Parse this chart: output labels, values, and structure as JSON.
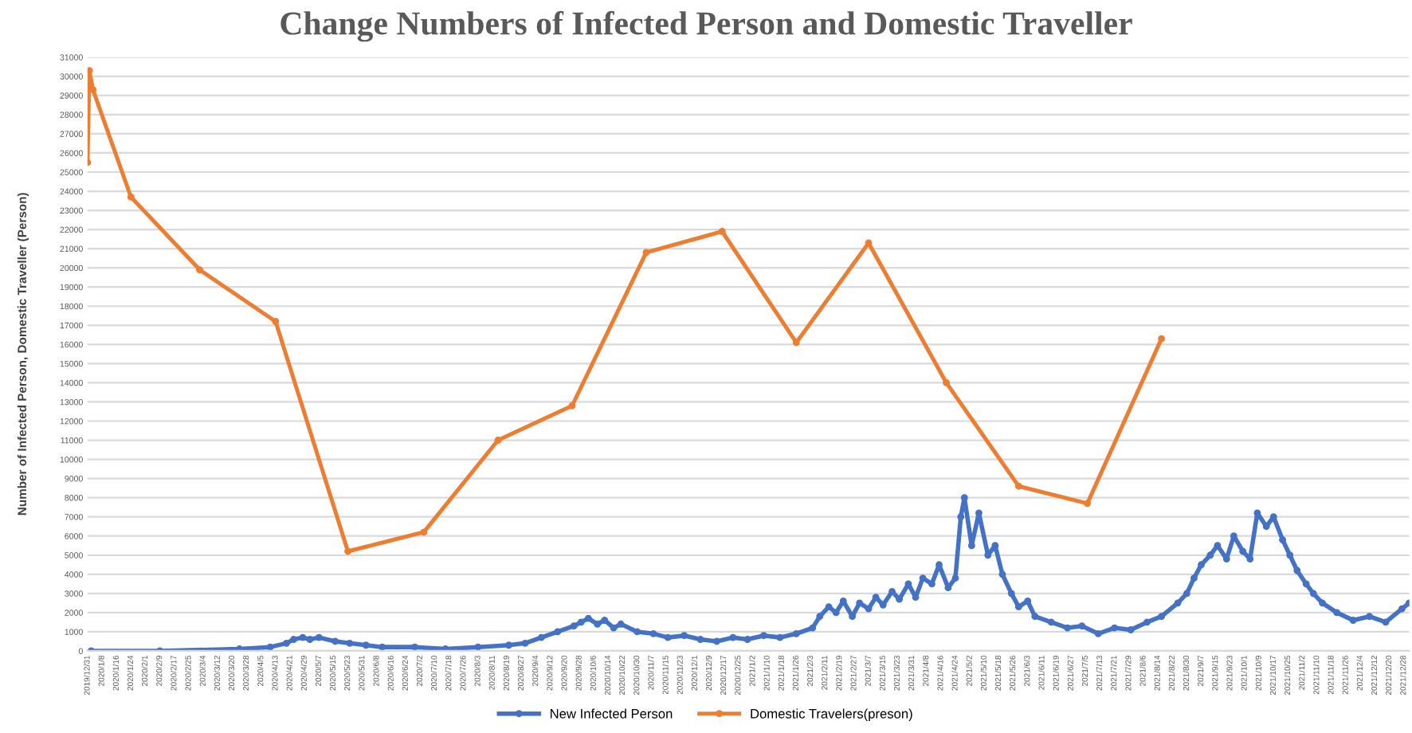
{
  "chart_data": {
    "type": "line",
    "title": "Change Numbers of Infected Person and Domestic Traveller",
    "ylabel": "Number of Infected Person, Domestic Traveller (Person)",
    "series": [
      {
        "name": "New Infected Person",
        "color": "#4472c4",
        "x": [
          "2020-01-02",
          "2020-02-09",
          "2020-03-24",
          "2020-04-10",
          "2020-04-19",
          "2020-04-23",
          "2020-04-28",
          "2020-05-02",
          "2020-05-07",
          "2020-05-16",
          "2020-05-24",
          "2020-06-02",
          "2020-06-11",
          "2020-06-29",
          "2020-07-16",
          "2020-08-03",
          "2020-08-20",
          "2020-08-29",
          "2020-09-07",
          "2020-09-16",
          "2020-09-25",
          "2020-09-29",
          "2020-10-03",
          "2020-10-08",
          "2020-10-12",
          "2020-10-17",
          "2020-10-21",
          "2020-10-30",
          "2020-11-08",
          "2020-11-16",
          "2020-11-25",
          "2020-12-04",
          "2020-12-13",
          "2020-12-22",
          "2020-12-30",
          "2021-01-08",
          "2021-01-17",
          "2021-01-26",
          "2021-02-04",
          "2021-02-08",
          "2021-02-13",
          "2021-02-17",
          "2021-02-21",
          "2021-02-26",
          "2021-03-02",
          "2021-03-07",
          "2021-03-11",
          "2021-03-15",
          "2021-03-20",
          "2021-03-24",
          "2021-03-29",
          "2021-04-02",
          "2021-04-06",
          "2021-04-11",
          "2021-04-15",
          "2021-04-20",
          "2021-04-24",
          "2021-04-27",
          "2021-04-29",
          "2021-05-03",
          "2021-05-07",
          "2021-05-12",
          "2021-05-16",
          "2021-05-20",
          "2021-05-25",
          "2021-05-29",
          "2021-06-03",
          "2021-06-07",
          "2021-06-16",
          "2021-06-25",
          "2021-07-03",
          "2021-07-12",
          "2021-07-21",
          "2021-07-30",
          "2021-08-08",
          "2021-08-16",
          "2021-08-25",
          "2021-08-30",
          "2021-09-03",
          "2021-09-07",
          "2021-09-12",
          "2021-09-16",
          "2021-09-21",
          "2021-09-25",
          "2021-09-30",
          "2021-10-04",
          "2021-10-08",
          "2021-10-13",
          "2021-10-17",
          "2021-10-22",
          "2021-10-26",
          "2021-10-30",
          "2021-11-04",
          "2021-11-08",
          "2021-11-13",
          "2021-11-21",
          "2021-11-30",
          "2021-12-09",
          "2021-12-18",
          "2021-12-27",
          "2021-12-31"
        ],
        "values": [
          0,
          0,
          100,
          200,
          400,
          600,
          700,
          600,
          700,
          500,
          400,
          300,
          200,
          200,
          100,
          200,
          300,
          400,
          700,
          1000,
          1300,
          1500,
          1700,
          1400,
          1600,
          1200,
          1400,
          1000,
          900,
          700,
          800,
          600,
          500,
          700,
          600,
          800,
          700,
          900,
          1200,
          1800,
          2300,
          2000,
          2600,
          1800,
          2500,
          2200,
          2800,
          2400,
          3100,
          2700,
          3500,
          2800,
          3800,
          3500,
          4500,
          3300,
          3800,
          7000,
          8000,
          5500,
          7200,
          5000,
          5500,
          4000,
          3000,
          2300,
          2600,
          1800,
          1500,
          1200,
          1300,
          900,
          1200,
          1100,
          1500,
          1800,
          2500,
          3000,
          3800,
          4500,
          5000,
          5500,
          4800,
          6000,
          5200,
          4800,
          7200,
          6500,
          7000,
          5800,
          5000,
          4200,
          3500,
          3000,
          2500,
          2000,
          1600,
          1800,
          1500,
          2200,
          2500
        ]
      },
      {
        "name": "Domestic Travelers(preson)",
        "color": "#ed7d31",
        "x": [
          "2019-12-31",
          "2020-01-01",
          "2020-01-03",
          "2020-01-24",
          "2020-03-02",
          "2020-04-13",
          "2020-05-23",
          "2020-07-04",
          "2020-08-14",
          "2020-09-24",
          "2020-11-04",
          "2020-12-16",
          "2021-01-26",
          "2021-03-07",
          "2021-04-19",
          "2021-05-29",
          "2021-07-06",
          "2021-08-16"
        ],
        "values": [
          25500,
          30300,
          29300,
          23700,
          19900,
          17200,
          5200,
          6200,
          11000,
          12800,
          20800,
          21900,
          16100,
          21300,
          14000,
          8600,
          7700,
          16300
        ]
      }
    ],
    "xlim": [
      "2019-12-31",
      "2021-12-31"
    ],
    "xticks": [
      {
        "value": "2019-12-31",
        "label": "2019/12/31"
      },
      {
        "value": "2020-01-08",
        "label": "2020/1/8"
      },
      {
        "value": "2020-01-16",
        "label": "2020/1/16"
      },
      {
        "value": "2020-01-24",
        "label": "2020/1/24"
      },
      {
        "value": "2020-02-01",
        "label": "2020/2/1"
      },
      {
        "value": "2020-02-09",
        "label": "2020/2/9"
      },
      {
        "value": "2020-02-17",
        "label": "2020/2/17"
      },
      {
        "value": "2020-02-25",
        "label": "2020/2/25"
      },
      {
        "value": "2020-03-04",
        "label": "2020/3/4"
      },
      {
        "value": "2020-03-12",
        "label": "2020/3/12"
      },
      {
        "value": "2020-03-20",
        "label": "2020/3/20"
      },
      {
        "value": "2020-03-28",
        "label": "2020/3/28"
      },
      {
        "value": "2020-04-05",
        "label": "2020/4/5"
      },
      {
        "value": "2020-04-13",
        "label": "2020/4/13"
      },
      {
        "value": "2020-04-21",
        "label": "2020/4/21"
      },
      {
        "value": "2020-04-29",
        "label": "2020/4/29"
      },
      {
        "value": "2020-05-07",
        "label": "2020/5/7"
      },
      {
        "value": "2020-05-15",
        "label": "2020/5/15"
      },
      {
        "value": "2020-05-23",
        "label": "2020/5/23"
      },
      {
        "value": "2020-05-31",
        "label": "2020/5/31"
      },
      {
        "value": "2020-06-08",
        "label": "2020/6/8"
      },
      {
        "value": "2020-06-16",
        "label": "2020/6/16"
      },
      {
        "value": "2020-06-24",
        "label": "2020/6/24"
      },
      {
        "value": "2020-07-02",
        "label": "2020/7/2"
      },
      {
        "value": "2020-07-10",
        "label": "2020/7/10"
      },
      {
        "value": "2020-07-18",
        "label": "2020/7/18"
      },
      {
        "value": "2020-07-26",
        "label": "2020/7/26"
      },
      {
        "value": "2020-08-03",
        "label": "2020/8/3"
      },
      {
        "value": "2020-08-11",
        "label": "2020/8/11"
      },
      {
        "value": "2020-08-19",
        "label": "2020/8/19"
      },
      {
        "value": "2020-08-27",
        "label": "2020/8/27"
      },
      {
        "value": "2020-09-04",
        "label": "2020/9/4"
      },
      {
        "value": "2020-09-12",
        "label": "2020/9/12"
      },
      {
        "value": "2020-09-20",
        "label": "2020/9/20"
      },
      {
        "value": "2020-09-28",
        "label": "2020/9/28"
      },
      {
        "value": "2020-10-06",
        "label": "2020/10/6"
      },
      {
        "value": "2020-10-14",
        "label": "2020/10/14"
      },
      {
        "value": "2020-10-22",
        "label": "2020/10/22"
      },
      {
        "value": "2020-10-30",
        "label": "2020/10/30"
      },
      {
        "value": "2020-11-07",
        "label": "2020/11/7"
      },
      {
        "value": "2020-11-15",
        "label": "2020/11/15"
      },
      {
        "value": "2020-11-23",
        "label": "2020/11/23"
      },
      {
        "value": "2020-12-01",
        "label": "2020/12/1"
      },
      {
        "value": "2020-12-09",
        "label": "2020/12/9"
      },
      {
        "value": "2020-12-17",
        "label": "2020/12/17"
      },
      {
        "value": "2020-12-25",
        "label": "2020/12/25"
      },
      {
        "value": "2021-01-02",
        "label": "2021/1/2"
      },
      {
        "value": "2021-01-10",
        "label": "2021/1/10"
      },
      {
        "value": "2021-01-18",
        "label": "2021/1/18"
      },
      {
        "value": "2021-01-26",
        "label": "2021/1/26"
      },
      {
        "value": "2021-02-03",
        "label": "2021/2/3"
      },
      {
        "value": "2021-02-11",
        "label": "2021/2/11"
      },
      {
        "value": "2021-02-19",
        "label": "2021/2/19"
      },
      {
        "value": "2021-02-27",
        "label": "2021/2/27"
      },
      {
        "value": "2021-03-07",
        "label": "2021/3/7"
      },
      {
        "value": "2021-03-15",
        "label": "2021/3/15"
      },
      {
        "value": "2021-03-23",
        "label": "2021/3/23"
      },
      {
        "value": "2021-03-31",
        "label": "2021/3/31"
      },
      {
        "value": "2021-04-08",
        "label": "2021/4/8"
      },
      {
        "value": "2021-04-16",
        "label": "2021/4/16"
      },
      {
        "value": "2021-04-24",
        "label": "2021/4/24"
      },
      {
        "value": "2021-05-02",
        "label": "2021/5/2"
      },
      {
        "value": "2021-05-10",
        "label": "2021/5/10"
      },
      {
        "value": "2021-05-18",
        "label": "2021/5/18"
      },
      {
        "value": "2021-05-26",
        "label": "2021/5/26"
      },
      {
        "value": "2021-06-03",
        "label": "2021/6/3"
      },
      {
        "value": "2021-06-11",
        "label": "2021/6/11"
      },
      {
        "value": "2021-06-19",
        "label": "2021/6/19"
      },
      {
        "value": "2021-06-27",
        "label": "2021/6/27"
      },
      {
        "value": "2021-07-05",
        "label": "2021/7/5"
      },
      {
        "value": "2021-07-13",
        "label": "2021/7/13"
      },
      {
        "value": "2021-07-21",
        "label": "2021/7/21"
      },
      {
        "value": "2021-07-29",
        "label": "2021/7/29"
      },
      {
        "value": "2021-08-06",
        "label": "2021/8/6"
      },
      {
        "value": "2021-08-14",
        "label": "2021/8/14"
      },
      {
        "value": "2021-08-22",
        "label": "2021/8/22"
      },
      {
        "value": "2021-08-30",
        "label": "2021/8/30"
      },
      {
        "value": "2021-09-07",
        "label": "2021/9/7"
      },
      {
        "value": "2021-09-15",
        "label": "2021/9/15"
      },
      {
        "value": "2021-09-23",
        "label": "2021/9/23"
      },
      {
        "value": "2021-10-01",
        "label": "2021/10/1"
      },
      {
        "value": "2021-10-09",
        "label": "2021/10/9"
      },
      {
        "value": "2021-10-17",
        "label": "2021/10/17"
      },
      {
        "value": "2021-10-25",
        "label": "2021/10/25"
      },
      {
        "value": "2021-11-02",
        "label": "2021/11/2"
      },
      {
        "value": "2021-11-10",
        "label": "2021/11/10"
      },
      {
        "value": "2021-11-18",
        "label": "2021/11/18"
      },
      {
        "value": "2021-11-26",
        "label": "2021/11/26"
      },
      {
        "value": "2021-12-04",
        "label": "2021/12/4"
      },
      {
        "value": "2021-12-12",
        "label": "2021/12/12"
      },
      {
        "value": "2021-12-20",
        "label": "2021/12/20"
      },
      {
        "value": "2021-12-28",
        "label": "2021/12/28"
      }
    ],
    "ylim": [
      0,
      31000
    ],
    "yticks": [
      0,
      1000,
      2000,
      3000,
      4000,
      5000,
      6000,
      7000,
      8000,
      9000,
      10000,
      11000,
      12000,
      13000,
      14000,
      15000,
      16000,
      17000,
      18000,
      19000,
      20000,
      21000,
      22000,
      23000,
      24000,
      25000,
      26000,
      27000,
      28000,
      29000,
      30000,
      31000
    ],
    "grid": "y",
    "legend": "bottom",
    "marker": "circle",
    "line_style": "solid"
  }
}
